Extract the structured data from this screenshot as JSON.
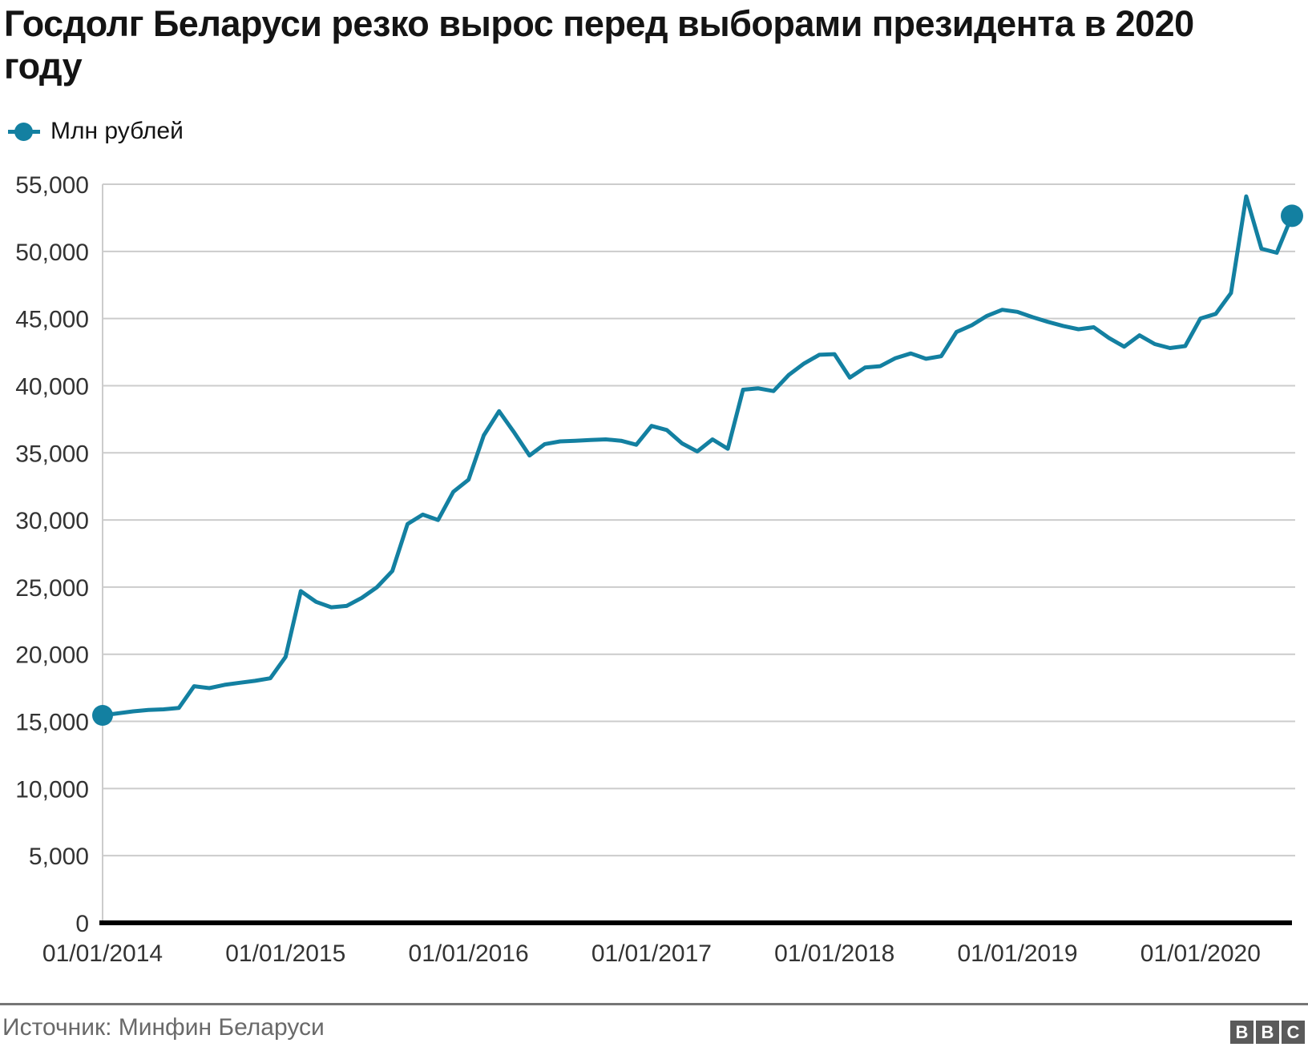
{
  "title": "Госдолг Беларуси резко вырос перед выборами президента в 2020 году",
  "legend": {
    "label": "Млн рублей"
  },
  "source": "Источник: Минфин Беларуси",
  "logo": {
    "letters": [
      "B",
      "B",
      "C"
    ]
  },
  "colors": {
    "line": "#1380A1",
    "grid": "#cccccc",
    "axis": "#000000",
    "tick_text": "#333333",
    "title_text": "#141414",
    "source_text": "#696969",
    "divider": "#767676",
    "logo_bg": "#5a5a5a",
    "logo_fg": "#ffffff"
  },
  "chart_data": {
    "type": "line",
    "title": "Госдолг Беларуси резко вырос перед выборами президента в 2020 году",
    "ylabel": "Млн рублей",
    "xlabel": "",
    "ylim": [
      0,
      55000
    ],
    "ytick_step": 5000,
    "grid": "horizontal",
    "legend_position": "top-left",
    "markers": {
      "first_point": true,
      "last_point": true
    },
    "x_tick_labels": [
      "01/01/2014",
      "01/01/2015",
      "01/01/2016",
      "01/01/2017",
      "01/01/2018",
      "01/01/2019",
      "01/01/2020"
    ],
    "x_tick_indices": [
      0,
      12,
      24,
      36,
      48,
      60,
      72
    ],
    "y_tick_labels": [
      "0",
      "5,000",
      "10,000",
      "15,000",
      "20,000",
      "25,000",
      "30,000",
      "35,000",
      "40,000",
      "45,000",
      "50,000",
      "55,000"
    ],
    "series": [
      {
        "name": "Млн рублей",
        "color": "#1380A1",
        "start_date": "01/01/2014",
        "frequency": "monthly",
        "values": [
          15450,
          15600,
          15750,
          15850,
          15900,
          16000,
          17620,
          17480,
          17720,
          17880,
          18020,
          18210,
          19800,
          24700,
          23900,
          23500,
          23600,
          24200,
          25000,
          26200,
          29700,
          30400,
          30000,
          32100,
          33000,
          36300,
          38100,
          36500,
          34800,
          35650,
          35850,
          35900,
          35950,
          36000,
          35900,
          35600,
          37000,
          36700,
          35700,
          35100,
          36000,
          35300,
          39700,
          39800,
          39600,
          40800,
          41650,
          42300,
          42350,
          40600,
          41350,
          41450,
          42050,
          42400,
          42000,
          42200,
          44000,
          44500,
          45200,
          45650,
          45500,
          45100,
          44750,
          44450,
          44200,
          44350,
          43550,
          42900,
          43750,
          43100,
          42800,
          42950,
          45000,
          45350,
          46900,
          54100,
          50200,
          49900,
          52650
        ]
      }
    ]
  }
}
